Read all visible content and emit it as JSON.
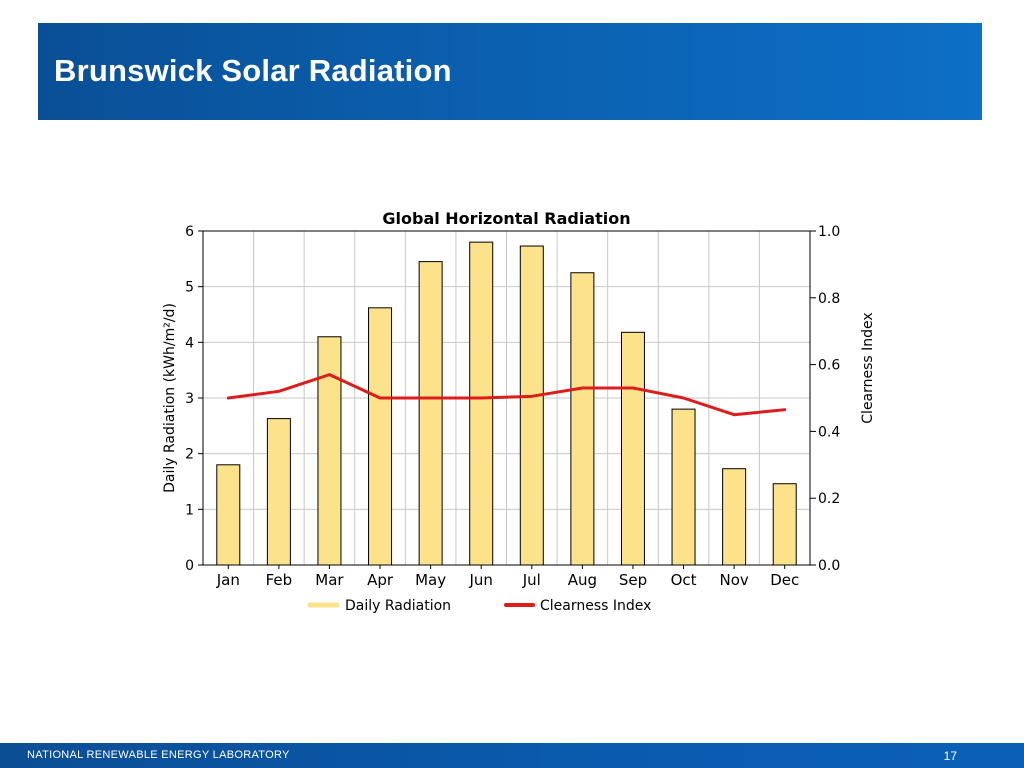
{
  "slide": {
    "title": "Brunswick Solar Radiation",
    "footer_label": "NATIONAL RENEWABLE ENERGY LABORATORY",
    "page_number": "17"
  },
  "colors": {
    "bar_fill": "#fde28c",
    "bar_stroke": "#000000",
    "line": "#dd1c1c",
    "legend_radiation": "#fde28c",
    "grid": "#c8c8c8"
  },
  "chart_data": {
    "type": "bar",
    "title": "Global Horizontal Radiation",
    "categories": [
      "Jan",
      "Feb",
      "Mar",
      "Apr",
      "May",
      "Jun",
      "Jul",
      "Aug",
      "Sep",
      "Oct",
      "Nov",
      "Dec"
    ],
    "series": [
      {
        "name": "Daily Radiation",
        "type": "bar",
        "axis": "left",
        "values": [
          1.8,
          2.63,
          4.1,
          4.62,
          5.45,
          5.8,
          5.73,
          5.25,
          4.18,
          2.8,
          1.73,
          1.46
        ]
      },
      {
        "name": "Clearness Index",
        "type": "line",
        "axis": "right",
        "values": [
          0.5,
          0.52,
          0.57,
          0.5,
          0.5,
          0.5,
          0.505,
          0.53,
          0.53,
          0.5,
          0.45,
          0.465
        ]
      }
    ],
    "ylabel_left": "Daily Radiation (kWh/m²/d)",
    "ylabel_right": "Clearness Index",
    "ylim_left": [
      0,
      6
    ],
    "ylim_right": [
      0,
      1.0
    ],
    "yticks_left": [
      "0",
      "1",
      "2",
      "3",
      "4",
      "5",
      "6"
    ],
    "yticks_right": [
      "0.0",
      "0.2",
      "0.4",
      "0.6",
      "0.8",
      "1.0"
    ],
    "grid": true,
    "legend_position": "bottom"
  }
}
